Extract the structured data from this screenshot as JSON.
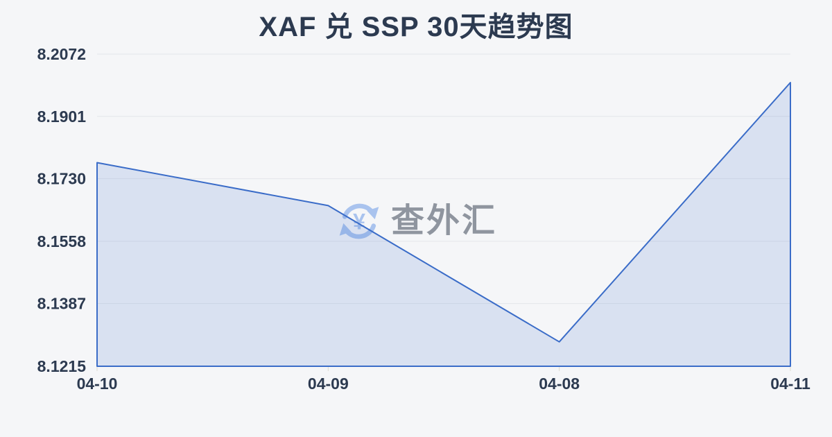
{
  "page": {
    "title": "XAF 兑 SSP 30天趋势图"
  },
  "watermark": {
    "text": "查外汇",
    "icon": "currency-yuan-refresh-icon"
  },
  "colors": {
    "background": "#f5f6f8",
    "title_text": "#2c3a50",
    "axis_text": "#2c3a50",
    "grid_line": "#e4e6ea",
    "series_line": "#3a6cc8",
    "series_fill": "rgba(58,108,200,0.15)",
    "tick_mark": "#dddcd2",
    "watermark_text": "#8f959f",
    "watermark_icon": "#a9c3ee"
  },
  "chart_data": {
    "type": "area",
    "title": "XAF 兑 SSP 30天趋势图",
    "categories": [
      "04-10",
      "04-09",
      "04-08",
      "04-11"
    ],
    "values": [
      8.1774,
      8.1656,
      8.1282,
      8.1994
    ],
    "y_tick_labels": [
      "8.2072",
      "8.1901",
      "8.1730",
      "8.1558",
      "8.1387",
      "8.1215"
    ],
    "ylim": [
      8.1215,
      8.2072
    ],
    "xlabel": "",
    "ylabel": "",
    "grid": true,
    "legend_position": "none"
  }
}
